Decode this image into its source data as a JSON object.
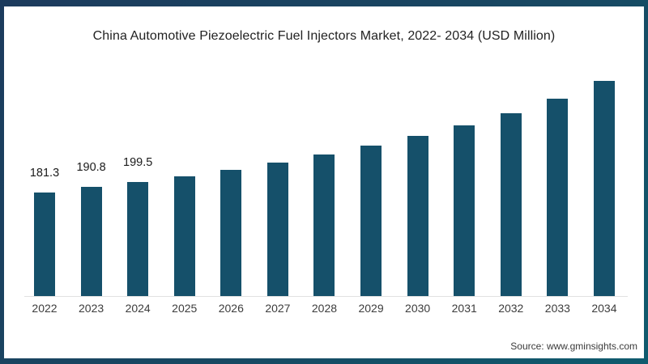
{
  "chart_data": {
    "type": "bar",
    "title": "China Automotive Piezoelectric Fuel Injectors Market, 2022- 2034 (USD Million)",
    "categories": [
      "2022",
      "2023",
      "2024",
      "2025",
      "2026",
      "2027",
      "2028",
      "2029",
      "2030",
      "2031",
      "2032",
      "2033",
      "2034"
    ],
    "values": [
      181.3,
      190.8,
      199.5,
      209.4,
      220.6,
      233.2,
      247.3,
      262.7,
      279.6,
      297.9,
      319.0,
      344.3,
      375.2
    ],
    "data_labels": [
      "181.3",
      "190.8",
      "199.5",
      "",
      "",
      "",
      "",
      "",
      "",
      "",
      "",
      "",
      ""
    ],
    "units": "USD Million",
    "xlabel": "",
    "ylabel": "",
    "ylim": [
      0,
      400
    ],
    "grid": false,
    "legend": false,
    "bar_color": "#15506a"
  },
  "source_note": "Source: www.gminsights.com",
  "colors": {
    "frame_border_start": "#1c3b5d",
    "frame_border_end": "#0f5b6e",
    "bar": "#15506a",
    "title_text": "#222222",
    "tick_text": "#3c3c3c",
    "value_label_text": "#1b1b1b",
    "axis_line": "#e2e2e2",
    "background": "#ffffff"
  }
}
